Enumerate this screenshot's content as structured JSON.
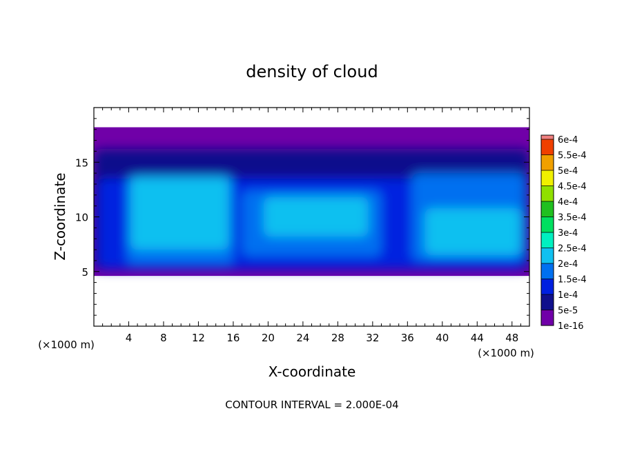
{
  "chart_data": {
    "type": "heatmap",
    "title": "density of cloud",
    "xlabel": "X-coordinate",
    "ylabel": "Z-coordinate",
    "x_unit": "(×1000 m)",
    "z_unit": "(×1000 m)",
    "footer": "CONTOUR INTERVAL = 2.000E-04",
    "xlim": [
      0,
      50
    ],
    "ylim": [
      0,
      20
    ],
    "x_ticks": [
      4,
      8,
      12,
      16,
      20,
      24,
      28,
      32,
      36,
      40,
      44,
      48
    ],
    "y_ticks": [
      5,
      10,
      15
    ],
    "cloud_base": 4.6,
    "cloud_top": 18.2,
    "colorbar": {
      "labels": [
        "1e-16",
        "5e-5",
        "1e-4",
        "1.5e-4",
        "2e-4",
        "2.5e-4",
        "3e-4",
        "3.5e-4",
        "4e-4",
        "4.5e-4",
        "5e-4",
        "5.5e-4",
        "6e-4"
      ],
      "colors": [
        "#7000a8",
        "#10108c",
        "#0020e0",
        "#0070f0",
        "#10c0f0",
        "#00f0c0",
        "#00e060",
        "#20c020",
        "#90e000",
        "#f0f000",
        "#f0a000",
        "#f04000",
        "#f00000"
      ],
      "top_color": "#f08080"
    },
    "regions": [
      {
        "level": 1,
        "x": [
          0,
          50
        ],
        "z": [
          5.2,
          16.2
        ]
      },
      {
        "level": 2,
        "x": [
          0.5,
          49.5
        ],
        "z": [
          5.3,
          13.5
        ]
      },
      {
        "level": 3,
        "x": [
          3.8,
          16
        ],
        "z": [
          5.6,
          13.8
        ]
      },
      {
        "level": 4,
        "x": [
          4.2,
          15.5
        ],
        "z": [
          7.0,
          13.6
        ]
      },
      {
        "level": 3,
        "x": [
          17,
          33
        ],
        "z": [
          6.4,
          12.4
        ]
      },
      {
        "level": 4,
        "x": [
          19.5,
          31.5
        ],
        "z": [
          8.2,
          11.8
        ]
      },
      {
        "level": 3,
        "x": [
          36.5,
          49.5
        ],
        "z": [
          6.0,
          14.0
        ]
      },
      {
        "level": 4,
        "x": [
          38,
          49
        ],
        "z": [
          6.5,
          10.8
        ]
      }
    ]
  }
}
